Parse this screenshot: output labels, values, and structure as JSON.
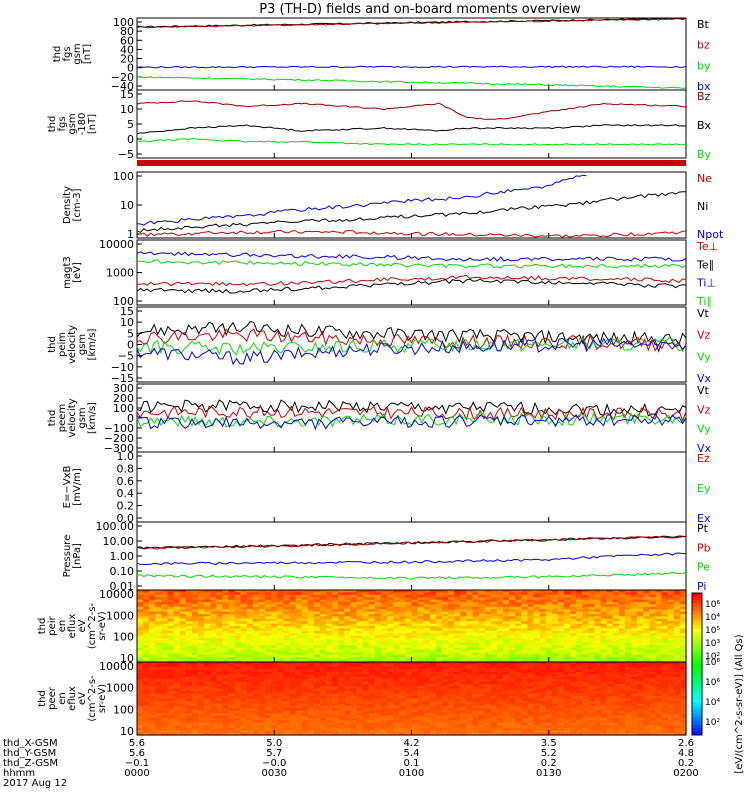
{
  "title": "P3 (TH-D) fields and on-board moments overview",
  "colors": {
    "black": "#000000",
    "red": "#cc0000",
    "green": "#00dd00",
    "blue": "#0000ee",
    "darkred": "#990000"
  },
  "chart_data": [
    {
      "id": "fgs",
      "type": "line",
      "ylabel": [
        "thd",
        "fgs",
        "gsm",
        "[nT]"
      ],
      "yticks": [
        "100",
        "80",
        "60",
        "40",
        "20",
        "0",
        "−20",
        "−40"
      ],
      "ylim": [
        -50,
        105
      ],
      "legend": [
        "Bt",
        "bz",
        "by",
        "bx"
      ],
      "legend_colors": [
        "black",
        "red",
        "green",
        "blue"
      ],
      "series": [
        {
          "name": "Bt",
          "color": "black",
          "x": [
            0,
            0.33,
            0.66,
            1
          ],
          "y": [
            86,
            92,
            98,
            104
          ]
        },
        {
          "name": "bz",
          "color": "darkred",
          "x": [
            0,
            0.33,
            0.66,
            1
          ],
          "y": [
            85,
            91,
            97,
            103
          ]
        },
        {
          "name": "by",
          "color": "blue",
          "x": [
            0,
            0.5,
            1
          ],
          "y": [
            -1,
            0,
            0
          ]
        },
        {
          "name": "bx",
          "color": "green",
          "x": [
            0,
            0.25,
            0.5,
            0.75,
            1
          ],
          "y": [
            -22,
            -27,
            -33,
            -39,
            -46
          ]
        }
      ]
    },
    {
      "id": "fgs-dsl",
      "type": "line",
      "ylabel": [
        "thd",
        "fgs",
        "gsm",
        "-180",
        "[nT]"
      ],
      "yticks": [
        "15",
        "10",
        "5",
        "0",
        "−5"
      ],
      "ylim": [
        -8,
        17
      ],
      "legend": [
        "Bz",
        "Bx",
        "By"
      ],
      "legend_colors": [
        "darkred",
        "black",
        "green"
      ],
      "series": [
        {
          "name": "Bz",
          "color": "darkred",
          "x": [
            0,
            0.1,
            0.2,
            0.3,
            0.45,
            0.55,
            0.6,
            0.65,
            0.75,
            0.85,
            1
          ],
          "y": [
            12,
            13,
            11,
            12,
            10,
            12,
            7,
            6,
            9,
            12,
            11
          ]
        },
        {
          "name": "Bx",
          "color": "black",
          "x": [
            0,
            0.1,
            0.2,
            0.3,
            0.45,
            0.55,
            0.6,
            0.65,
            0.75,
            0.85,
            1
          ],
          "y": [
            1,
            3,
            4,
            2,
            3,
            2,
            3,
            3,
            3,
            4,
            4
          ]
        },
        {
          "name": "By",
          "color": "green",
          "x": [
            0,
            0.1,
            0.2,
            0.3,
            0.45,
            0.55,
            0.6,
            0.65,
            0.75,
            0.85,
            1
          ],
          "y": [
            -2,
            -1,
            -2,
            -2,
            -3,
            -3,
            -3,
            -3,
            -3,
            -3,
            -3
          ]
        }
      ]
    },
    {
      "id": "density",
      "type": "line",
      "log": true,
      "ylabel": [
        "Density",
        "[cm-3]"
      ],
      "yticks": [
        "100",
        "10",
        "1"
      ],
      "ylim": [
        0.6,
        180
      ],
      "legend": [
        "Ne",
        "Ni",
        "Npot"
      ],
      "legend_colors": [
        "red",
        "black",
        "blue"
      ],
      "series": [
        {
          "name": "Npot",
          "color": "blue",
          "x": [
            0,
            0.2,
            0.4,
            0.6,
            0.75,
            0.82
          ],
          "y": [
            2,
            4,
            10,
            20,
            50,
            150
          ]
        },
        {
          "name": "Ni",
          "color": "black",
          "x": [
            0,
            0.2,
            0.4,
            0.6,
            0.8,
            1
          ],
          "y": [
            1.1,
            2,
            3,
            5,
            11,
            30
          ]
        },
        {
          "name": "Ne",
          "color": "red",
          "x": [
            0,
            0.2,
            0.4,
            0.6,
            0.8,
            1
          ],
          "y": [
            0.8,
            1,
            1,
            0.8,
            0.7,
            1
          ]
        }
      ]
    },
    {
      "id": "temp",
      "type": "line",
      "log": true,
      "ylabel": [
        "magt3",
        "[eV]"
      ],
      "yticks": [
        "10000",
        "1000",
        "100"
      ],
      "ylim": [
        100,
        12000
      ],
      "legend": [
        "Te⊥",
        "Te∥",
        "Ti⊥",
        "Ti∥"
      ],
      "legend_colors": [
        "red",
        "black",
        "blue",
        "green"
      ],
      "series": [
        {
          "name": "Ti⊥",
          "color": "blue",
          "x": [
            0,
            0.2,
            0.4,
            0.6,
            0.8,
            1
          ],
          "y": [
            4500,
            4000,
            3500,
            3000,
            3000,
            3000
          ]
        },
        {
          "name": "Ti∥",
          "color": "green",
          "x": [
            0,
            0.2,
            0.4,
            0.6,
            0.8,
            1
          ],
          "y": [
            2500,
            2300,
            2000,
            1800,
            1800,
            1800
          ]
        },
        {
          "name": "Te⊥",
          "color": "red",
          "x": [
            0,
            0.2,
            0.4,
            0.6,
            0.8,
            1
          ],
          "y": [
            500,
            450,
            600,
            800,
            700,
            600
          ]
        },
        {
          "name": "Te∥",
          "color": "black",
          "x": [
            0,
            0.2,
            0.4,
            0.6,
            0.8,
            1
          ],
          "y": [
            300,
            280,
            400,
            600,
            500,
            400
          ]
        }
      ]
    },
    {
      "id": "peim-vel",
      "type": "line",
      "ylabel": [
        "thd",
        "peim",
        "velocity",
        "gsm",
        "[km/s]"
      ],
      "yticks": [
        "15",
        "10",
        "5",
        "0",
        "−5",
        "−10",
        "−15"
      ],
      "ylim": [
        -16,
        16
      ],
      "legend": [
        "Vt",
        "Vz",
        "Vy",
        "Vx"
      ],
      "legend_colors": [
        "black",
        "red",
        "green",
        "blue"
      ],
      "series": [
        {
          "name": "Vt",
          "color": "black",
          "x": [
            0,
            0.2,
            0.4,
            0.6,
            0.8,
            1
          ],
          "y": [
            6,
            7,
            5,
            4,
            3,
            2
          ]
        },
        {
          "name": "Vz",
          "color": "red",
          "x": [
            0,
            0.2,
            0.4,
            0.6,
            0.8,
            1
          ],
          "y": [
            3,
            4,
            2,
            1,
            1,
            0
          ]
        },
        {
          "name": "Vy",
          "color": "green",
          "x": [
            0,
            0.2,
            0.4,
            0.6,
            0.8,
            1
          ],
          "y": [
            -1,
            -2,
            -1,
            0,
            0,
            0
          ]
        },
        {
          "name": "Vx",
          "color": "blue",
          "x": [
            0,
            0.2,
            0.4,
            0.6,
            0.8,
            1
          ],
          "y": [
            -3,
            -6,
            -2,
            -1,
            0,
            0
          ]
        }
      ]
    },
    {
      "id": "peem-vel",
      "type": "line",
      "ylabel": [
        "thd",
        "peem",
        "velocity",
        "gsm",
        "[km/s]"
      ],
      "yticks": [
        "300",
        "200",
        "100",
        "0",
        "−100",
        "−200",
        "−300"
      ],
      "ylim": [
        -300,
        300
      ],
      "legend": [
        "Vt",
        "Vz",
        "Vy",
        "Vx"
      ],
      "legend_colors": [
        "black",
        "red",
        "green",
        "blue"
      ],
      "series": [
        {
          "name": "Vt",
          "color": "black",
          "x": [
            0,
            0.2,
            0.4,
            0.6,
            0.8,
            1
          ],
          "y": [
            100,
            110,
            100,
            90,
            80,
            60
          ]
        },
        {
          "name": "Vz",
          "color": "red",
          "x": [
            0,
            0.2,
            0.4,
            0.6,
            0.8,
            1
          ],
          "y": [
            50,
            60,
            50,
            40,
            40,
            30
          ]
        },
        {
          "name": "Vy",
          "color": "green",
          "x": [
            0,
            0.2,
            0.4,
            0.6,
            0.8,
            1
          ],
          "y": [
            -20,
            -30,
            -20,
            -10,
            -10,
            0
          ]
        },
        {
          "name": "Vx",
          "color": "blue",
          "x": [
            0,
            0.2,
            0.4,
            0.6,
            0.8,
            1
          ],
          "y": [
            -40,
            -50,
            -40,
            -30,
            -20,
            -10
          ]
        }
      ]
    },
    {
      "id": "efield",
      "type": "line",
      "ylabel": [
        "E=−VxB",
        "[mV/m]"
      ],
      "yticks": [
        "1.0",
        "0.8",
        "0.6",
        "0.4",
        "0.2",
        "0.0"
      ],
      "ylim": [
        0,
        1
      ],
      "legend": [
        "Ez",
        "Ey",
        "Ex"
      ],
      "legend_colors": [
        "red",
        "green",
        "blue"
      ],
      "series": []
    },
    {
      "id": "pressure",
      "type": "line",
      "log": true,
      "ylabel": [
        "Pressure",
        "[nPa]"
      ],
      "yticks": [
        "100.00",
        "10.00",
        "1.00",
        "0.10",
        "0.01"
      ],
      "ylim": [
        0.01,
        100
      ],
      "legend": [
        "Pt",
        "Pb",
        "Pe",
        "Pi"
      ],
      "legend_colors": [
        "black",
        "red",
        "green",
        "blue"
      ],
      "series": [
        {
          "name": "Pt",
          "color": "black",
          "x": [
            0,
            0.25,
            0.5,
            0.75,
            1
          ],
          "y": [
            3,
            4,
            6,
            9,
            14
          ]
        },
        {
          "name": "Pb",
          "color": "darkred",
          "x": [
            0,
            0.25,
            0.5,
            0.75,
            1
          ],
          "y": [
            2.8,
            3.8,
            5.8,
            8.8,
            13.5
          ]
        },
        {
          "name": "Pi",
          "color": "blue",
          "x": [
            0,
            0.25,
            0.5,
            0.75,
            1
          ],
          "y": [
            0.35,
            0.4,
            0.45,
            0.6,
            1.4
          ]
        },
        {
          "name": "Pe",
          "color": "green",
          "x": [
            0,
            0.25,
            0.5,
            0.75,
            1
          ],
          "y": [
            0.07,
            0.06,
            0.05,
            0.06,
            0.1
          ]
        }
      ]
    },
    {
      "id": "peir",
      "type": "heatmap",
      "ylabel": [
        "thd",
        "peir",
        "en",
        "eflux",
        "eV",
        "(cm^2-s-",
        "sr-eV)"
      ],
      "yticks": [
        "10000",
        "1000",
        "100",
        "10"
      ],
      "ylim": [
        5,
        25000
      ],
      "colorbar_label": "[eV/(cm^2-s-sr-eV)]"
    },
    {
      "id": "peer",
      "type": "heatmap",
      "ylabel": [
        "thd",
        "peer",
        "en",
        "eflux",
        "eV",
        "(cm^2-s-",
        "sr-eV)"
      ],
      "yticks": [
        "10000",
        "1000",
        "100",
        "10"
      ],
      "ylim": [
        5,
        25000
      ],
      "colorbar_label": "[eV/(cm^2-s-sr-eV)] (All Qs)"
    }
  ],
  "colorbar_ticks": [
    "10⁶",
    "10⁴",
    "10⁵",
    "10³",
    "10²"
  ],
  "colorbar_ticks2": [
    "10⁸",
    "10⁶",
    "10⁴",
    "10²"
  ],
  "xaxis": {
    "row_labels": [
      "thd_X-GSM",
      "thd_Y-GSM",
      "thd_Z-GSM",
      "hhmm",
      "2017 Aug 12"
    ],
    "columns": [
      [
        "5.6",
        "5.6",
        "−0.1",
        "0000"
      ],
      [
        "5.0",
        "5.7",
        "−0.0",
        "0030"
      ],
      [
        "4.2",
        "5.4",
        "0.1",
        "0100"
      ],
      [
        "3.5",
        "5.2",
        "0.2",
        "0130"
      ],
      [
        "2.6",
        "4.8",
        "0.2",
        "0200"
      ]
    ]
  }
}
